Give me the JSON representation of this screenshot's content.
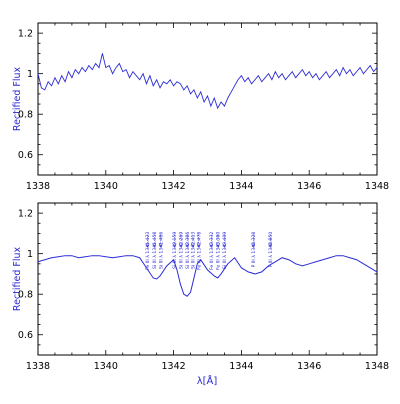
{
  "chart_data": [
    {
      "type": "line",
      "title": "",
      "xlabel": "",
      "ylabel": "Rectified Flux",
      "xlim": [
        1338,
        1348
      ],
      "ylim": [
        0.5,
        1.25
      ],
      "xticks": [
        1338,
        1340,
        1342,
        1344,
        1346,
        1348
      ],
      "yticks": [
        0.6,
        0.8,
        1.0,
        1.2
      ],
      "ytick_labels": [
        "0.6",
        "0.8",
        "1",
        "1.2"
      ],
      "grid": false,
      "series": [
        {
          "color": "#2b2bd6",
          "x": [
            1338.0,
            1338.1,
            1338.2,
            1338.3,
            1338.4,
            1338.5,
            1338.6,
            1338.7,
            1338.8,
            1338.9,
            1339.0,
            1339.1,
            1339.2,
            1339.3,
            1339.4,
            1339.5,
            1339.6,
            1339.7,
            1339.8,
            1339.9,
            1340.0,
            1340.1,
            1340.2,
            1340.3,
            1340.4,
            1340.5,
            1340.6,
            1340.7,
            1340.8,
            1340.9,
            1341.0,
            1341.1,
            1341.2,
            1341.3,
            1341.4,
            1341.5,
            1341.6,
            1341.7,
            1341.8,
            1341.9,
            1342.0,
            1342.1,
            1342.2,
            1342.3,
            1342.4,
            1342.5,
            1342.6,
            1342.7,
            1342.8,
            1342.9,
            1343.0,
            1343.1,
            1343.2,
            1343.3,
            1343.4,
            1343.5,
            1343.6,
            1343.7,
            1343.8,
            1343.9,
            1344.0,
            1344.1,
            1344.2,
            1344.3,
            1344.4,
            1344.5,
            1344.6,
            1344.7,
            1344.8,
            1344.9,
            1345.0,
            1345.1,
            1345.2,
            1345.3,
            1345.4,
            1345.5,
            1345.6,
            1345.7,
            1345.8,
            1345.9,
            1346.0,
            1346.1,
            1346.2,
            1346.3,
            1346.4,
            1346.5,
            1346.6,
            1346.7,
            1346.8,
            1346.9,
            1347.0,
            1347.1,
            1347.2,
            1347.3,
            1347.4,
            1347.5,
            1347.6,
            1347.7,
            1347.8,
            1347.9,
            1348.0
          ],
          "y": [
            1.0,
            0.93,
            0.92,
            0.96,
            0.94,
            0.98,
            0.95,
            0.99,
            0.96,
            1.01,
            0.98,
            1.02,
            1.0,
            1.03,
            1.01,
            1.04,
            1.02,
            1.05,
            1.03,
            1.1,
            1.03,
            1.04,
            1.0,
            1.03,
            1.05,
            1.01,
            1.02,
            0.98,
            1.01,
            0.99,
            0.97,
            1.0,
            0.95,
            0.99,
            0.94,
            0.97,
            0.93,
            0.96,
            0.95,
            0.97,
            0.94,
            0.96,
            0.95,
            0.92,
            0.94,
            0.9,
            0.92,
            0.88,
            0.91,
            0.86,
            0.89,
            0.84,
            0.88,
            0.83,
            0.86,
            0.84,
            0.88,
            0.91,
            0.94,
            0.97,
            0.99,
            0.96,
            0.98,
            0.95,
            0.97,
            0.99,
            0.96,
            0.98,
            1.0,
            0.97,
            1.01,
            0.98,
            1.0,
            0.97,
            0.99,
            1.01,
            0.98,
            1.0,
            1.02,
            0.99,
            1.01,
            0.98,
            1.0,
            0.97,
            0.99,
            1.01,
            0.98,
            1.0,
            1.02,
            0.99,
            1.03,
            1.0,
            1.02,
            0.99,
            1.01,
            1.03,
            1.0,
            1.02,
            1.04,
            1.01,
            1.03
          ]
        }
      ]
    },
    {
      "type": "line",
      "title": "",
      "xlabel": "λ[Å]",
      "ylabel": "Rectified Flux",
      "xlim": [
        1338,
        1348
      ],
      "ylim": [
        0.5,
        1.25
      ],
      "xticks": [
        1338,
        1340,
        1342,
        1344,
        1346,
        1348
      ],
      "yticks": [
        0.6,
        0.8,
        1.0,
        1.2
      ],
      "ytick_labels": [
        "0.6",
        "0.8",
        "1",
        "1.2"
      ],
      "grid": false,
      "series": [
        {
          "color": "#2b2bd6",
          "x": [
            1338.0,
            1338.2,
            1338.4,
            1338.6,
            1338.8,
            1339.0,
            1339.2,
            1339.4,
            1339.6,
            1339.8,
            1340.0,
            1340.2,
            1340.4,
            1340.6,
            1340.8,
            1341.0,
            1341.2,
            1341.4,
            1341.5,
            1341.6,
            1341.8,
            1342.0,
            1342.1,
            1342.2,
            1342.3,
            1342.4,
            1342.5,
            1342.6,
            1342.7,
            1342.8,
            1343.0,
            1343.2,
            1343.3,
            1343.4,
            1343.6,
            1343.8,
            1344.0,
            1344.2,
            1344.4,
            1344.6,
            1344.8,
            1345.0,
            1345.2,
            1345.4,
            1345.6,
            1345.8,
            1346.0,
            1346.2,
            1346.4,
            1346.6,
            1346.8,
            1347.0,
            1347.2,
            1347.4,
            1347.6,
            1347.8,
            1348.0
          ],
          "y": [
            0.96,
            0.97,
            0.98,
            0.985,
            0.99,
            0.99,
            0.98,
            0.985,
            0.99,
            0.99,
            0.985,
            0.98,
            0.985,
            0.99,
            0.99,
            0.98,
            0.93,
            0.88,
            0.875,
            0.89,
            0.94,
            0.97,
            0.92,
            0.85,
            0.8,
            0.79,
            0.81,
            0.88,
            0.95,
            0.97,
            0.92,
            0.89,
            0.88,
            0.9,
            0.95,
            0.98,
            0.93,
            0.91,
            0.9,
            0.91,
            0.94,
            0.96,
            0.98,
            0.97,
            0.95,
            0.94,
            0.95,
            0.96,
            0.97,
            0.98,
            0.99,
            0.99,
            0.98,
            0.97,
            0.95,
            0.93,
            0.91
          ]
        }
      ],
      "annotations": [
        {
          "label": "Fe III λ 1341.423",
          "x": 1341.23
        },
        {
          "label": "Si III λ 1341.458",
          "x": 1341.43
        },
        {
          "label": "Si III λ 1341.486",
          "x": 1341.62
        },
        {
          "label": "Si III λ 1342.159",
          "x": 1342.03
        },
        {
          "label": "Si III λ 1342.269",
          "x": 1342.22
        },
        {
          "label": "Si III λ 1342.386",
          "x": 1342.4
        },
        {
          "label": "Si III λ 1342.413",
          "x": 1342.57
        },
        {
          "label": "Fe III λ 1342.478",
          "x": 1342.74
        },
        {
          "label": "Fe III λ 1343.332",
          "x": 1343.11
        },
        {
          "label": "Fe III λ 1343.380",
          "x": 1343.31
        },
        {
          "label": "Si III λ 1343.409",
          "x": 1343.5
        },
        {
          "label": "P III λ 1344.328",
          "x": 1344.35
        },
        {
          "label": "P III λ 1344.850",
          "x": 1344.85
        }
      ]
    }
  ]
}
